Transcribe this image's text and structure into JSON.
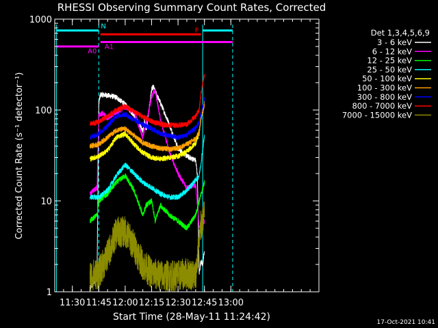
{
  "chart_data": {
    "type": "line",
    "title": "RHESSI Observing Summary Count Rates, Corrected",
    "xlabel": "Start Time (28-May-11 11:24:42)",
    "ylabel": "Corrected Count Rate (s⁻¹ detector⁻¹)",
    "yscale": "log",
    "ylim": [
      1,
      1000
    ],
    "xlim_min": [
      -5,
      145
    ],
    "x_unit": "minutes after 11:25",
    "xticks": [
      {
        "t": 5,
        "label": "11:30"
      },
      {
        "t": 20,
        "label": "11:45"
      },
      {
        "t": 35,
        "label": "12:00"
      },
      {
        "t": 50,
        "label": "12:15"
      },
      {
        "t": 65,
        "label": "12:30"
      },
      {
        "t": 80,
        "label": "12:45"
      },
      {
        "t": 95,
        "label": "13:00"
      }
    ],
    "yticks": [
      {
        "v": 1,
        "label": "1"
      },
      {
        "v": 10,
        "label": "10"
      },
      {
        "v": 100,
        "label": "100"
      },
      {
        "v": 1000,
        "label": "1000"
      }
    ],
    "legend_title": "Det 1,3,4,5,6,9",
    "legend_position": "right",
    "timestamp": "17-Oct-2021 10:41",
    "flags": [
      {
        "label": "N",
        "color": "#00ffff",
        "value": 750,
        "segments": [
          [
            -4,
            20
          ],
          [
            79,
            96
          ]
        ]
      },
      {
        "label": "F",
        "color": "#ff0000",
        "value": 680,
        "segments": [
          [
            21,
            78
          ]
        ]
      },
      {
        "label": "A0",
        "color": "#ff00ff",
        "value": 500,
        "segments": [
          [
            -4,
            20
          ]
        ]
      },
      {
        "label": "A1",
        "color": "#ff00ff",
        "value": 560,
        "segments": [
          [
            21,
            96
          ]
        ]
      }
    ],
    "vlines": [
      {
        "t": -4,
        "style": "solid"
      },
      {
        "t": 20,
        "style": "dashed"
      },
      {
        "t": 79,
        "style": "solid"
      },
      {
        "t": 96,
        "style": "dashed"
      }
    ],
    "series": [
      {
        "name": "3 - 6 keV",
        "color": "#ffffff",
        "x": [
          15,
          19,
          20,
          21,
          25,
          30,
          35,
          40,
          45,
          46,
          47,
          50,
          51,
          52,
          55,
          60,
          65,
          70,
          75,
          76,
          77,
          78,
          79,
          80
        ],
        "y": [
          1.1,
          1.4,
          120,
          148,
          145,
          138,
          115,
          88,
          60,
          75,
          60,
          168,
          180,
          160,
          120,
          70,
          38,
          31,
          28,
          19,
          1.6,
          2.2,
          2.0,
          2.8
        ]
      },
      {
        "name": "6 - 12 keV",
        "color": "#ff00ff",
        "x": [
          15,
          19,
          20,
          22,
          25,
          30,
          35,
          40,
          45,
          48,
          50,
          52,
          55,
          60,
          65,
          68,
          70,
          75,
          76,
          77,
          78,
          80
        ],
        "y": [
          12,
          14,
          88,
          92,
          82,
          95,
          108,
          96,
          50,
          90,
          142,
          165,
          80,
          35,
          20,
          16,
          14,
          15,
          9,
          5,
          5,
          6
        ]
      },
      {
        "name": "12 - 25 keV",
        "color": "#00ff00",
        "x": [
          15,
          19,
          20,
          25,
          30,
          35,
          40,
          45,
          47,
          50,
          52,
          55,
          60,
          65,
          70,
          75,
          77,
          80
        ],
        "y": [
          6,
          7,
          10,
          12,
          16,
          19,
          13,
          7,
          9,
          10,
          6,
          9,
          7,
          6,
          5,
          7,
          10,
          16
        ]
      },
      {
        "name": "25 - 50 keV",
        "color": "#00ffff",
        "x": [
          15,
          20,
          25,
          30,
          35,
          40,
          45,
          50,
          55,
          60,
          65,
          70,
          75,
          77,
          78,
          80
        ],
        "y": [
          11,
          11,
          13,
          19,
          25,
          20,
          16,
          14,
          12,
          11,
          11,
          13,
          17,
          19,
          26,
          52
        ]
      },
      {
        "name": "50 - 100 keV",
        "color": "#ffff00",
        "x": [
          15,
          20,
          25,
          30,
          35,
          40,
          45,
          50,
          55,
          60,
          65,
          70,
          75,
          77,
          78,
          80
        ],
        "y": [
          29,
          31,
          36,
          50,
          55,
          42,
          34,
          30,
          29,
          30,
          31,
          35,
          43,
          55,
          82,
          120
        ]
      },
      {
        "name": "100 - 300 keV",
        "color": "#ffa000",
        "x": [
          15,
          20,
          25,
          30,
          35,
          40,
          45,
          50,
          55,
          60,
          65,
          70,
          75,
          77,
          78,
          80
        ],
        "y": [
          40,
          42,
          50,
          60,
          62,
          52,
          44,
          40,
          38,
          37,
          38,
          42,
          48,
          58,
          80,
          115
        ]
      },
      {
        "name": "300 - 800 keV",
        "color": "#0000ff",
        "x": [
          15,
          20,
          25,
          30,
          35,
          40,
          45,
          50,
          55,
          60,
          65,
          70,
          75,
          77,
          78,
          80
        ],
        "y": [
          50,
          55,
          67,
          86,
          90,
          78,
          70,
          62,
          55,
          52,
          50,
          53,
          63,
          74,
          90,
          130
        ]
      },
      {
        "name": "800 - 7000 keV",
        "color": "#ff0000",
        "x": [
          15,
          20,
          25,
          30,
          35,
          40,
          45,
          50,
          55,
          60,
          65,
          70,
          75,
          77,
          78,
          80
        ],
        "y": [
          70,
          74,
          85,
          100,
          110,
          96,
          84,
          75,
          70,
          68,
          68,
          70,
          85,
          100,
          150,
          250
        ]
      },
      {
        "name": "7000 - 15000 keV",
        "color": "#8c8c00",
        "x": [
          15,
          20,
          25,
          30,
          35,
          40,
          45,
          50,
          55,
          60,
          65,
          70,
          75,
          77,
          78,
          80
        ],
        "y": [
          1.5,
          1.6,
          2.5,
          4.5,
          4.6,
          3.2,
          2.0,
          1.6,
          1.5,
          1.5,
          1.5,
          1.6,
          1.5,
          3.5,
          5.2,
          7.0
        ]
      }
    ]
  }
}
